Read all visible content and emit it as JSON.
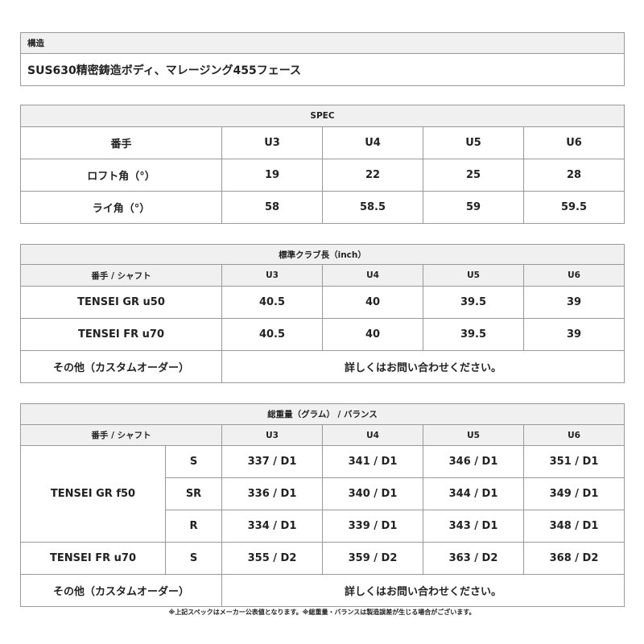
{
  "structure": {
    "title": "構造",
    "value": "SUS630精密鋳造ボディ、マレージング455フェース"
  },
  "spec": {
    "title": "SPEC",
    "columns": [
      "番手",
      "U3",
      "U4",
      "U5",
      "U6"
    ],
    "rows": [
      [
        "ロフト角（°）",
        "19",
        "22",
        "25",
        "28"
      ],
      [
        "ライ角（°）",
        "58",
        "58.5",
        "59",
        "59.5"
      ]
    ]
  },
  "length": {
    "title": "標準クラブ長（inch）",
    "columns": [
      "番手 / シャフト",
      "U3",
      "U4",
      "U5",
      "U6"
    ],
    "rows": [
      [
        "TENSEI GR u50",
        "40.5",
        "40",
        "39.5",
        "39"
      ],
      [
        "TENSEI FR u70",
        "40.5",
        "40",
        "39.5",
        "39"
      ]
    ],
    "other_label": "その他（カスタムオーダー）",
    "other_value": "詳しくはお問い合わせください。"
  },
  "weight": {
    "title": "総重量（グラム） / バランス",
    "columns": [
      "番手 / シャフト",
      "U3",
      "U4",
      "U5",
      "U6"
    ],
    "groups": [
      {
        "shaft": "TENSEI GR f50",
        "rows": [
          [
            "S",
            "337 / D1",
            "341 / D1",
            "346 / D1",
            "351 / D1"
          ],
          [
            "SR",
            "336 / D1",
            "340 / D1",
            "344 / D1",
            "349 / D1"
          ],
          [
            "R",
            "334 / D1",
            "339 / D1",
            "343 / D1",
            "348 / D1"
          ]
        ]
      },
      {
        "shaft": "TENSEI FR u70",
        "rows": [
          [
            "S",
            "355 / D2",
            "359 / D2",
            "363 / D2",
            "368 / D2"
          ]
        ]
      }
    ],
    "other_label": "その他（カスタムオーダー）",
    "other_value": "詳しくはお問い合わせください。"
  },
  "footnote": "※上記スペックはメーカー公表値となります。※総重量・バランスは製造誤差が生じる場合がございます。"
}
